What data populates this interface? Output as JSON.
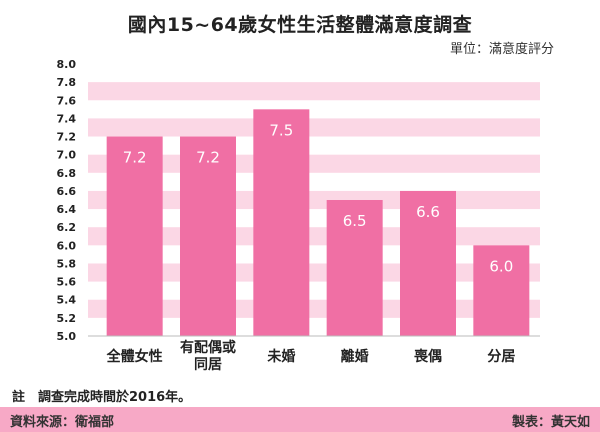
{
  "title": "國內15~64歲女性生活整體滿意度調查",
  "unit_label": "單位：滿意度評分",
  "note": "註　調查完成時間於2016年。",
  "source": "資料來源：衛福部",
  "maker": "製表：黃天如",
  "colors": {
    "bar": "#f06fa4",
    "band": "#fbd7e5",
    "footer": "#f7a9c6",
    "label_inside": "#ffffff"
  },
  "chart_data": {
    "type": "bar",
    "categories": [
      "全體女性",
      "有配偶或\n同居",
      "未婚",
      "離婚",
      "喪偶",
      "分居"
    ],
    "values": [
      7.2,
      7.2,
      7.5,
      6.5,
      6.6,
      6.0
    ],
    "value_labels": [
      "7.2",
      "7.2",
      "7.5",
      "6.5",
      "6.6",
      "6.0"
    ],
    "ylim": [
      5.0,
      8.0
    ],
    "yticks": [
      "5.0",
      "5.2",
      "5.4",
      "5.6",
      "5.8",
      "6.0",
      "6.2",
      "6.4",
      "6.6",
      "6.8",
      "7.0",
      "7.2",
      "7.4",
      "7.6",
      "7.8",
      "8.0"
    ],
    "grid": "alternating-bands",
    "legend": "none"
  }
}
